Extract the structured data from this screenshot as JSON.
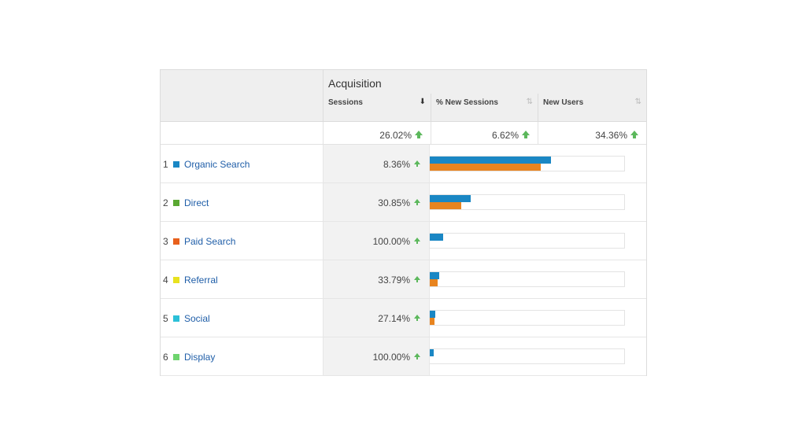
{
  "report": {
    "group_title": "Acquisition",
    "columns": [
      {
        "label": "Sessions",
        "sorted": true,
        "sort_icon": "arrow-down-icon"
      },
      {
        "label": "% New Sessions",
        "sorted": false,
        "sort_icon": "sort-icon"
      },
      {
        "label": "New Users",
        "sorted": false,
        "sort_icon": "sort-icon"
      }
    ],
    "totals": [
      {
        "value": "26.02%",
        "trend": "up"
      },
      {
        "value": "6.62%",
        "trend": "up"
      },
      {
        "value": "34.36%",
        "trend": "up"
      }
    ],
    "rows": [
      {
        "index": "1",
        "name": "Organic Search",
        "swatch": "#1a87c4",
        "sessions_change": "8.36%",
        "bar_a": 0.62,
        "bar_b": 0.57
      },
      {
        "index": "2",
        "name": "Direct",
        "swatch": "#5aa832",
        "sessions_change": "30.85%",
        "bar_a": 0.21,
        "bar_b": 0.16
      },
      {
        "index": "3",
        "name": "Paid Search",
        "swatch": "#e8601c",
        "sessions_change": "100.00%",
        "bar_a": 0.07,
        "bar_b": 0.0
      },
      {
        "index": "4",
        "name": "Referral",
        "swatch": "#e8e21f",
        "sessions_change": "33.79%",
        "bar_a": 0.05,
        "bar_b": 0.04
      },
      {
        "index": "5",
        "name": "Social",
        "swatch": "#2cc0d8",
        "sessions_change": "27.14%",
        "bar_a": 0.03,
        "bar_b": 0.025
      },
      {
        "index": "6",
        "name": "Display",
        "swatch": "#6ed46e",
        "sessions_change": "100.00%",
        "bar_a": 0.02,
        "bar_b": 0.0
      }
    ],
    "colors": {
      "bar_primary": "#1a87c4",
      "bar_secondary": "#e8841f",
      "trend_up": "#5cb85c",
      "link": "#1f5ea8"
    }
  }
}
